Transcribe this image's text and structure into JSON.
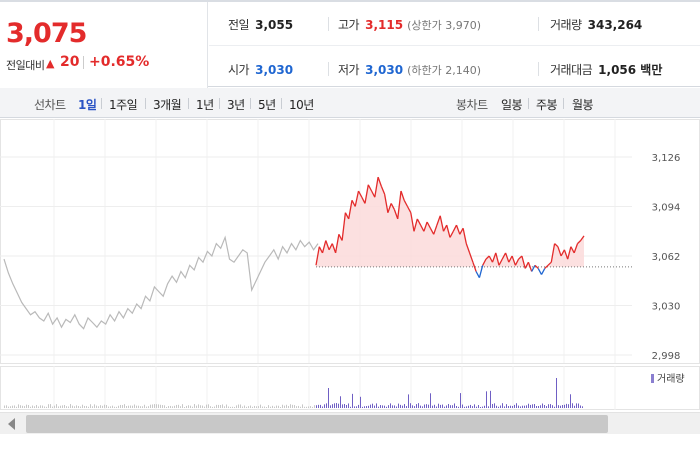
{
  "quote": {
    "current_price": "3,075",
    "change_label": "전일대비",
    "change_arrow": "▲",
    "change_value": "20",
    "change_percent": "+0.65%"
  },
  "stats": {
    "prev_close": {
      "label": "전일",
      "value": "3,055"
    },
    "high": {
      "label": "고가",
      "value": "3,115",
      "sub": "(상한가 3,970)"
    },
    "volume": {
      "label": "거래량",
      "value": "343,264"
    },
    "open": {
      "label": "시가",
      "value": "3,030"
    },
    "low": {
      "label": "저가",
      "value": "3,030",
      "sub": "(하한가 2,140)"
    },
    "amount": {
      "label": "거래대금",
      "value": "1,056 백만"
    }
  },
  "period_tabs": {
    "label": "선차트",
    "items": [
      "1일",
      "1주일",
      "3개월",
      "1년",
      "3년",
      "5년",
      "10년"
    ],
    "selected": "1일"
  },
  "candle_tabs": {
    "label": "봉차트",
    "items": [
      "일봉",
      "주봉",
      "월봉"
    ]
  },
  "chart_data": {
    "type": "line",
    "y_ticks": [
      "3,126",
      "3,094",
      "3,062",
      "3,030",
      "2,998"
    ],
    "ylim": [
      2998,
      3126
    ],
    "reference_price": 3055,
    "colors": {
      "up": "#e32b2b",
      "down": "#1f66d1",
      "prev_day": "#b9b9b9",
      "fill": "#fbdada"
    },
    "prev_day_series": [
      3060,
      3051,
      3044,
      3038,
      3032,
      3028,
      3024,
      3026,
      3022,
      3020,
      3025,
      3018,
      3022,
      3016,
      3021,
      3019,
      3024,
      3018,
      3015,
      3022,
      3019,
      3016,
      3020,
      3018,
      3024,
      3020,
      3026,
      3022,
      3028,
      3025,
      3031,
      3028,
      3036,
      3033,
      3042,
      3039,
      3036,
      3044,
      3049,
      3045,
      3052,
      3048,
      3056,
      3053,
      3061,
      3058,
      3065,
      3062,
      3070,
      3067,
      3074,
      3060,
      3058,
      3062,
      3066,
      3064,
      3040,
      3046,
      3052,
      3058,
      3062,
      3066,
      3060,
      3068,
      3064,
      3070,
      3066,
      3072,
      3068,
      3071,
      3066,
      3070
    ],
    "today_series": [
      3056,
      3068,
      3064,
      3072,
      3066,
      3070,
      3064,
      3076,
      3072,
      3090,
      3086,
      3098,
      3094,
      3104,
      3100,
      3096,
      3108,
      3104,
      3100,
      3113,
      3107,
      3102,
      3090,
      3096,
      3092,
      3086,
      3104,
      3098,
      3094,
      3090,
      3078,
      3086,
      3082,
      3078,
      3084,
      3080,
      3076,
      3082,
      3088,
      3078,
      3082,
      3074,
      3078,
      3082,
      3076,
      3080,
      3070,
      3064,
      3058,
      3052,
      3048,
      3056,
      3060,
      3062,
      3058,
      3064,
      3056,
      3060,
      3064,
      3058,
      3062,
      3056,
      3060,
      3062,
      3054,
      3058,
      3052,
      3056,
      3054,
      3050,
      3054,
      3056,
      3058,
      3070,
      3068,
      3062,
      3066,
      3060,
      3068,
      3064,
      3070,
      3072,
      3075
    ],
    "volume_label": "거래량"
  }
}
